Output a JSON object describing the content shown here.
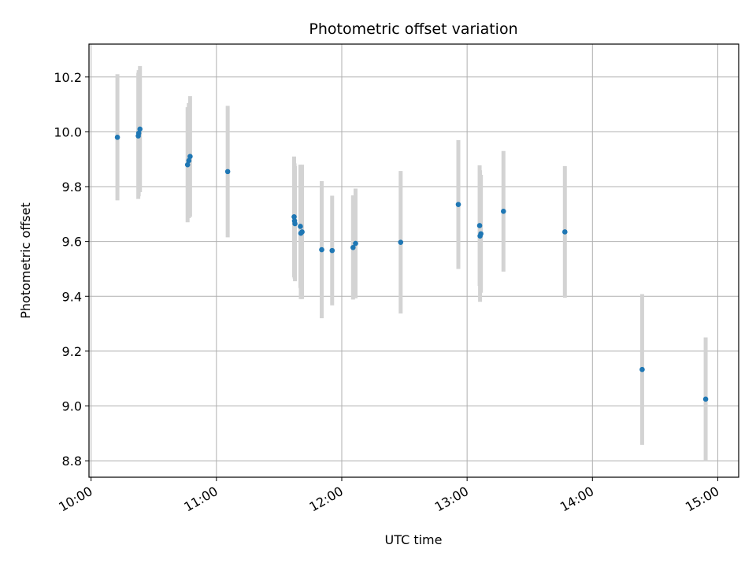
{
  "chart_data": {
    "type": "scatter",
    "title": "Photometric offset variation",
    "xlabel": "UTC time",
    "ylabel": "Photometric offset",
    "xlim": [
      "09:59",
      "15:10"
    ],
    "ylim": [
      8.74,
      10.32
    ],
    "x_ticks": [
      "10:00",
      "11:00",
      "12:00",
      "13:00",
      "14:00",
      "15:00"
    ],
    "y_ticks": [
      8.8,
      9.0,
      9.2,
      9.4,
      9.6,
      9.8,
      10.0,
      10.2
    ],
    "grid": true,
    "point_color": "#1f77b4",
    "errorbar_color": "#d3d3d3",
    "points": [
      {
        "x": "10:12:36",
        "y": 9.98,
        "err": 0.23
      },
      {
        "x": "10:22:36",
        "y": 9.985,
        "err": 0.23
      },
      {
        "x": "10:22:48",
        "y": 9.995,
        "err": 0.23
      },
      {
        "x": "10:23:24",
        "y": 10.01,
        "err": 0.23
      },
      {
        "x": "10:46:12",
        "y": 9.88,
        "err": 0.21
      },
      {
        "x": "10:46:48",
        "y": 9.895,
        "err": 0.21
      },
      {
        "x": "10:47:24",
        "y": 9.91,
        "err": 0.22
      },
      {
        "x": "11:05:24",
        "y": 9.855,
        "err": 0.24
      },
      {
        "x": "11:37:12",
        "y": 9.69,
        "err": 0.22
      },
      {
        "x": "11:37:24",
        "y": 9.675,
        "err": 0.21
      },
      {
        "x": "11:37:36",
        "y": 9.665,
        "err": 0.21
      },
      {
        "x": "11:40:12",
        "y": 9.655,
        "err": 0.225
      },
      {
        "x": "11:40:24",
        "y": 9.63,
        "err": 0.24
      },
      {
        "x": "11:41:00",
        "y": 9.635,
        "err": 0.245
      },
      {
        "x": "11:50:24",
        "y": 9.57,
        "err": 0.25
      },
      {
        "x": "11:55:24",
        "y": 9.567,
        "err": 0.2
      },
      {
        "x": "12:05:24",
        "y": 9.578,
        "err": 0.19
      },
      {
        "x": "12:06:36",
        "y": 9.593,
        "err": 0.2
      },
      {
        "x": "12:28:12",
        "y": 9.597,
        "err": 0.26
      },
      {
        "x": "12:55:48",
        "y": 9.735,
        "err": 0.235
      },
      {
        "x": "13:06:00",
        "y": 9.658,
        "err": 0.22
      },
      {
        "x": "13:06:12",
        "y": 9.62,
        "err": 0.24
      },
      {
        "x": "13:06:36",
        "y": 9.628,
        "err": 0.215
      },
      {
        "x": "13:17:24",
        "y": 9.71,
        "err": 0.22
      },
      {
        "x": "13:46:48",
        "y": 9.635,
        "err": 0.24
      },
      {
        "x": "14:23:48",
        "y": 9.133,
        "err": 0.275
      },
      {
        "x": "14:54:12",
        "y": 9.025,
        "err": 0.225
      }
    ]
  }
}
